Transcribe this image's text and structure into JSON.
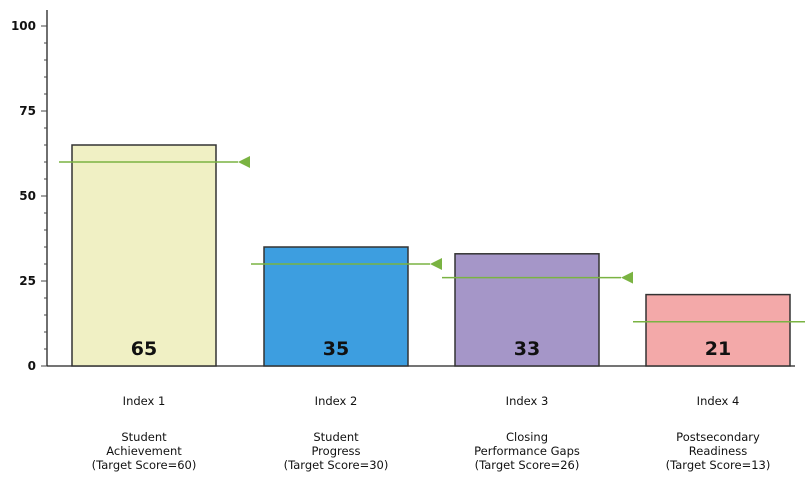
{
  "chart_data": {
    "type": "bar",
    "ylim": [
      0,
      100
    ],
    "yticks": [
      0,
      25,
      50,
      75,
      100
    ],
    "grid": false,
    "categories": [
      {
        "index": "Index 1",
        "lines": [
          "Student",
          "Achievement",
          "(Target Score=60)"
        ]
      },
      {
        "index": "Index 2",
        "lines": [
          "Student",
          "Progress",
          "(Target Score=30)"
        ]
      },
      {
        "index": "Index 3",
        "lines": [
          "Closing",
          "Performance Gaps",
          "(Target Score=26)"
        ]
      },
      {
        "index": "Index 4",
        "lines": [
          "Postsecondary",
          "Readiness",
          "(Target Score=13)"
        ]
      }
    ],
    "values": [
      65,
      35,
      33,
      21
    ],
    "targets": [
      60,
      30,
      26,
      13
    ],
    "bar_colors": [
      "#f0f0c4",
      "#3d9ee0",
      "#a596c8",
      "#f3a9a9"
    ],
    "target_color": "#7ab342"
  }
}
